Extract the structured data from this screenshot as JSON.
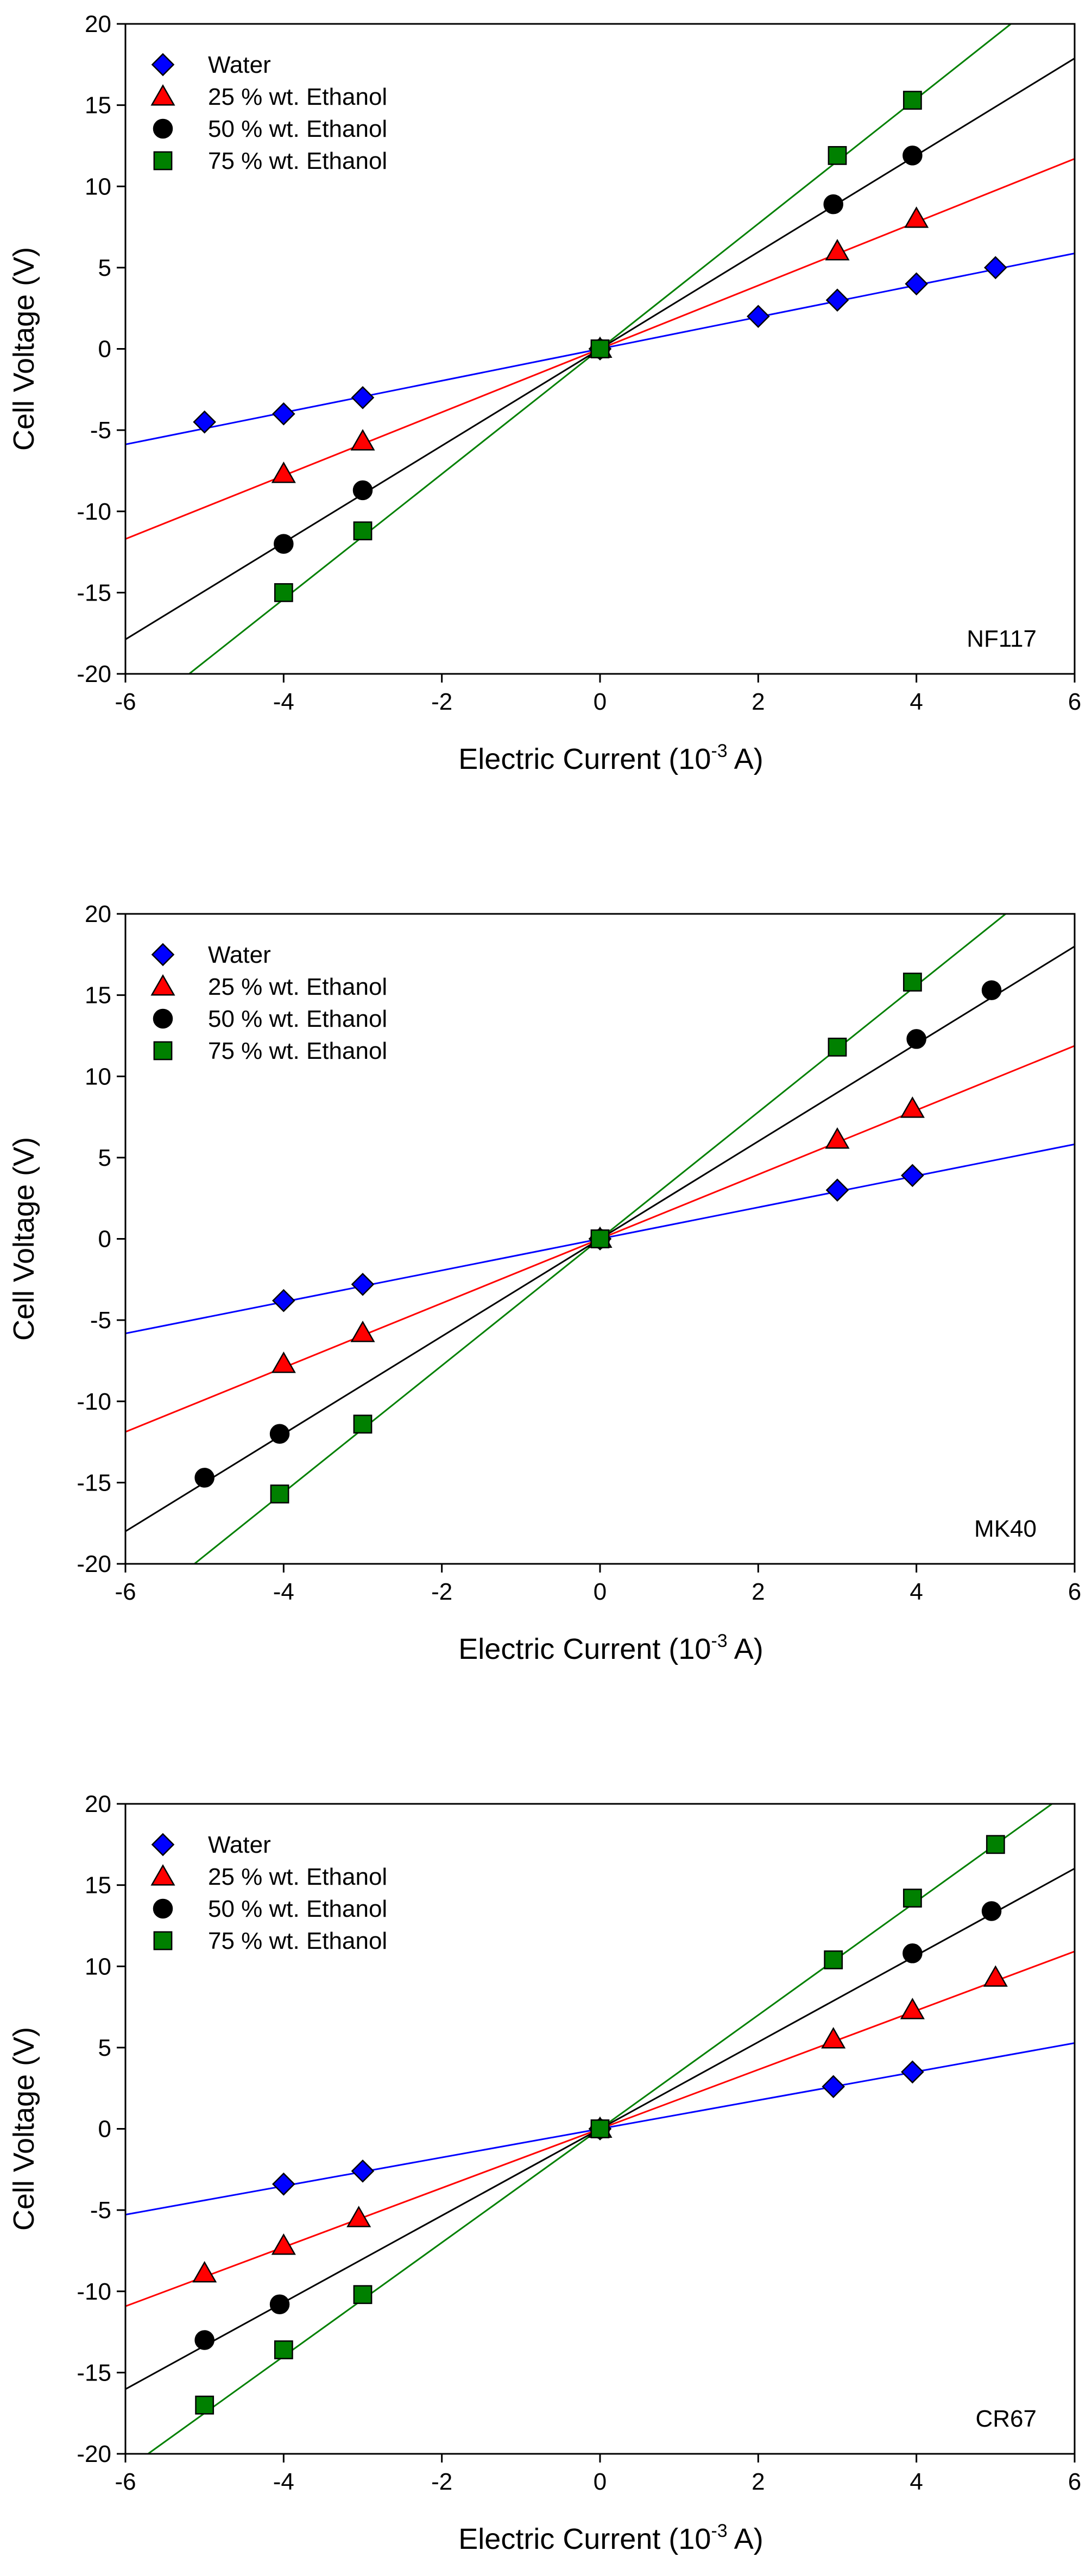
{
  "chart_data": [
    {
      "type": "scatter",
      "panel_label": "NF117",
      "xlabel": "Electric Current (10",
      "xlabel_exponent": "-3",
      "xlabel_suffix": " A)",
      "ylabel": "Cell Voltage (V)",
      "xlim": [
        -6,
        6
      ],
      "ylim": [
        -20,
        20
      ],
      "xticks": [
        -6,
        -4,
        -2,
        0,
        2,
        4,
        6
      ],
      "yticks": [
        -20,
        -15,
        -10,
        -5,
        0,
        5,
        10,
        15,
        20
      ],
      "legend_position": "top-left",
      "series": [
        {
          "name": "Water",
          "marker": "diamond",
          "color": "#0000ff",
          "line_color": "#0000ff",
          "slope": 0.98,
          "points": [
            [
              -5,
              -4.5
            ],
            [
              -4,
              -4
            ],
            [
              -3,
              -3
            ],
            [
              0,
              0
            ],
            [
              2,
              2
            ],
            [
              3,
              3
            ],
            [
              4,
              4
            ],
            [
              5,
              5
            ]
          ]
        },
        {
          "name": "25 % wt. Ethanol",
          "marker": "triangle",
          "color": "#ff0000",
          "line_color": "#ff0000",
          "slope": 1.95,
          "points": [
            [
              -4,
              -7.7
            ],
            [
              -3,
              -5.7
            ],
            [
              0,
              0
            ],
            [
              3,
              6
            ],
            [
              4,
              8
            ]
          ]
        },
        {
          "name": "50 % wt. Ethanol",
          "marker": "circle",
          "color": "#000000",
          "line_color": "#000000",
          "slope": 2.98,
          "points": [
            [
              -4,
              -12
            ],
            [
              -3,
              -8.7
            ],
            [
              0,
              0
            ],
            [
              2.95,
              8.9
            ],
            [
              3.95,
              11.9
            ]
          ]
        },
        {
          "name": "75 % wt. Ethanol",
          "marker": "square",
          "color": "#008000",
          "line_color": "#008000",
          "slope": 3.85,
          "points": [
            [
              -4,
              -15
            ],
            [
              -3,
              -11.2
            ],
            [
              0,
              0
            ],
            [
              3,
              11.9
            ],
            [
              3.95,
              15.3
            ]
          ]
        }
      ]
    },
    {
      "type": "scatter",
      "panel_label": "MK40",
      "xlabel": "Electric Current (10",
      "xlabel_exponent": "-3",
      "xlabel_suffix": " A)",
      "ylabel": "Cell Voltage (V)",
      "xlim": [
        -6,
        6
      ],
      "ylim": [
        -20,
        20
      ],
      "xticks": [
        -6,
        -4,
        -2,
        0,
        2,
        4,
        6
      ],
      "yticks": [
        -20,
        -15,
        -10,
        -5,
        0,
        5,
        10,
        15,
        20
      ],
      "legend_position": "top-left",
      "series": [
        {
          "name": "Water",
          "marker": "diamond",
          "color": "#0000ff",
          "line_color": "#0000ff",
          "slope": 0.97,
          "points": [
            [
              -4,
              -3.8
            ],
            [
              -3,
              -2.8
            ],
            [
              0,
              0
            ],
            [
              3,
              3
            ],
            [
              3.95,
              3.9
            ]
          ]
        },
        {
          "name": "25 % wt. Ethanol",
          "marker": "triangle",
          "color": "#ff0000",
          "line_color": "#ff0000",
          "slope": 1.98,
          "points": [
            [
              -4,
              -7.7
            ],
            [
              -3,
              -5.8
            ],
            [
              0,
              0
            ],
            [
              3,
              6.1
            ],
            [
              3.95,
              8
            ]
          ]
        },
        {
          "name": "50 % wt. Ethanol",
          "marker": "circle",
          "color": "#000000",
          "line_color": "#000000",
          "slope": 3.0,
          "points": [
            [
              -5,
              -14.7
            ],
            [
              -4.05,
              -12
            ],
            [
              0,
              0
            ],
            [
              4,
              12.3
            ],
            [
              4.95,
              15.3
            ]
          ]
        },
        {
          "name": "75 % wt. Ethanol",
          "marker": "square",
          "color": "#008000",
          "line_color": "#008000",
          "slope": 3.9,
          "points": [
            [
              -4.05,
              -15.7
            ],
            [
              -3,
              -11.4
            ],
            [
              0,
              0
            ],
            [
              3,
              11.8
            ],
            [
              3.95,
              15.8
            ]
          ]
        }
      ]
    },
    {
      "type": "scatter",
      "panel_label": "CR67",
      "xlabel": "Electric Current (10",
      "xlabel_exponent": "-3",
      "xlabel_suffix": " A)",
      "ylabel": "Cell Voltage (V)",
      "xlim": [
        -6,
        6
      ],
      "ylim": [
        -20,
        20
      ],
      "xticks": [
        -6,
        -4,
        -2,
        0,
        2,
        4,
        6
      ],
      "yticks": [
        -20,
        -15,
        -10,
        -5,
        0,
        5,
        10,
        15,
        20
      ],
      "legend_position": "top-left",
      "series": [
        {
          "name": "Water",
          "marker": "diamond",
          "color": "#0000ff",
          "line_color": "#0000ff",
          "slope": 0.88,
          "points": [
            [
              -4,
              -3.4
            ],
            [
              -3,
              -2.6
            ],
            [
              0,
              0
            ],
            [
              2.95,
              2.6
            ],
            [
              3.95,
              3.5
            ]
          ]
        },
        {
          "name": "25 % wt. Ethanol",
          "marker": "triangle",
          "color": "#ff0000",
          "line_color": "#ff0000",
          "slope": 1.82,
          "points": [
            [
              -5,
              -8.9
            ],
            [
              -4,
              -7.2
            ],
            [
              -3.05,
              -5.5
            ],
            [
              0,
              0
            ],
            [
              2.95,
              5.5
            ],
            [
              3.95,
              7.3
            ],
            [
              5,
              9.3
            ]
          ]
        },
        {
          "name": "50 % wt. Ethanol",
          "marker": "circle",
          "color": "#000000",
          "line_color": "#000000",
          "slope": 2.67,
          "points": [
            [
              -5,
              -13
            ],
            [
              -4.05,
              -10.8
            ],
            [
              0,
              0
            ],
            [
              3.95,
              10.8
            ],
            [
              4.95,
              13.4
            ]
          ]
        },
        {
          "name": "75 % wt. Ethanol",
          "marker": "square",
          "color": "#008000",
          "line_color": "#008000",
          "slope": 3.5,
          "points": [
            [
              -5,
              -17
            ],
            [
              -4,
              -13.6
            ],
            [
              -3,
              -10.2
            ],
            [
              0,
              0
            ],
            [
              2.95,
              10.4
            ],
            [
              3.95,
              14.2
            ],
            [
              5,
              17.5
            ]
          ]
        }
      ]
    }
  ]
}
